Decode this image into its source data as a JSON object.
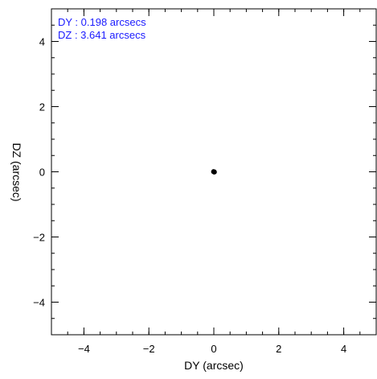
{
  "chart_data": {
    "type": "scatter",
    "title": "",
    "xlabel": "DY (arcsec)",
    "ylabel": "DZ (arcsec)",
    "xlim": [
      -5,
      5
    ],
    "ylim": [
      -5,
      5
    ],
    "x_ticks": [
      -4,
      -2,
      0,
      2,
      4
    ],
    "y_ticks": [
      -4,
      -2,
      0,
      2,
      4
    ],
    "x_tick_labels": [
      "−4",
      "−2",
      "0",
      "2",
      "4"
    ],
    "y_tick_labels": [
      "−4",
      "−2",
      "0",
      "2",
      "4"
    ],
    "minor_tick_step": 0.5,
    "grid": false,
    "series": [
      {
        "points": [
          [
            0.0,
            0.0
          ],
          [
            0.02,
            0.01
          ],
          [
            -0.02,
            0.0
          ],
          [
            0.01,
            -0.02
          ],
          [
            -0.01,
            0.02
          ],
          [
            0.03,
            -0.01
          ]
        ],
        "color": "#000000"
      }
    ],
    "annotations": [
      {
        "text": "DY : 0.198 arcsecs",
        "color": "#1a1aff"
      },
      {
        "text": "DZ : 3.641 arcsecs",
        "color": "#1a1aff"
      }
    ]
  }
}
